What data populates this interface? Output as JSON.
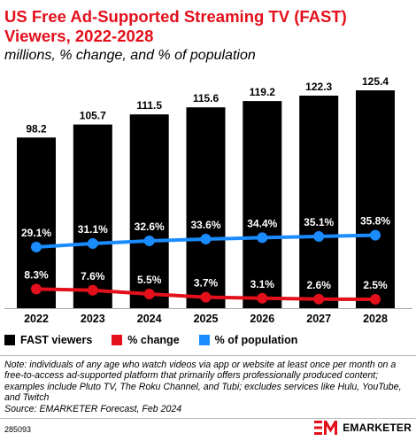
{
  "title": "US Free Ad-Supported Streaming TV (FAST) Viewers, 2022-2028",
  "subtitle": "millions, % change, and % of population",
  "chart_data": {
    "type": "bar",
    "categories": [
      "2022",
      "2023",
      "2024",
      "2025",
      "2026",
      "2027",
      "2028"
    ],
    "series": [
      {
        "name": "FAST viewers",
        "type": "bar",
        "color": "#000000",
        "values": [
          98.2,
          105.7,
          111.5,
          115.6,
          119.2,
          122.3,
          125.4
        ],
        "labels": [
          "98.2",
          "105.7",
          "111.5",
          "115.6",
          "119.2",
          "122.3",
          "125.4"
        ]
      },
      {
        "name": "% change",
        "type": "line",
        "color": "#e3101c",
        "values": [
          8.3,
          7.6,
          5.5,
          3.7,
          3.1,
          2.6,
          2.5
        ],
        "labels": [
          "8.3%",
          "7.6%",
          "5.5%",
          "3.7%",
          "3.1%",
          "2.6%",
          "2.5%"
        ]
      },
      {
        "name": "% of population",
        "type": "line",
        "color": "#1a8cff",
        "values": [
          29.1,
          31.1,
          32.6,
          33.6,
          34.4,
          35.1,
          35.8
        ],
        "labels": [
          "29.1%",
          "31.1%",
          "32.6%",
          "33.6%",
          "34.4%",
          "35.1%",
          "35.8%"
        ]
      }
    ],
    "legend_position": "bottom-left",
    "grid": false
  },
  "note": "Note: individuals of any age who watch videos via app or website at least once per month on a free-to-access ad-supported platform that primarily offers professionally produced content; examples include Pluto TV, The Roku Channel, and Tubi; excludes services like Hulu, YouTube, and Twitch",
  "source": "Source: EMARKETER Forecast, Feb 2024",
  "chart_id": "285093",
  "brand": {
    "name": "EMARKETER",
    "color": "#e3101c"
  }
}
